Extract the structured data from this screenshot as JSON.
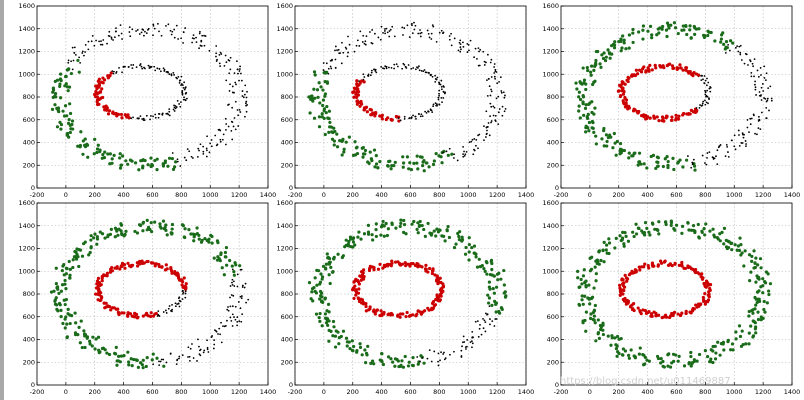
{
  "page": {
    "left_bar_color": "#a9a9a9"
  },
  "watermark": "https://blog.csdn.net/u011469887",
  "colors": {
    "black": "#000000",
    "red": "#cc0000",
    "green": "#1a6b1a",
    "grid": "#b5b5b5",
    "tick": "#000000"
  },
  "chart_data": [
    {
      "type": "scatter",
      "panel": "1",
      "xlim": [
        -200,
        1400
      ],
      "ylim": [
        0,
        1600
      ],
      "xticks": [
        -200,
        0,
        200,
        400,
        600,
        800,
        1000,
        1200,
        1400
      ],
      "yticks": [
        0,
        200,
        400,
        600,
        800,
        1000,
        1200,
        1400,
        1600
      ],
      "grid": true,
      "series": [
        {
          "color": "black"
        },
        {
          "color": "red"
        },
        {
          "color": "green"
        }
      ],
      "inner_ring": {
        "center": [
          520,
          840
        ],
        "rx": 300,
        "ry": 230,
        "red_ranges": [
          [
            135,
            120
          ]
        ],
        "green_ranges": []
      },
      "outer_ring": {
        "center": [
          580,
          800
        ],
        "rx": 620,
        "ry": 590,
        "red_ranges": [],
        "green_ranges": [
          [
            150,
            140
          ]
        ]
      }
    },
    {
      "type": "scatter",
      "panel": "2",
      "xlim": [
        -200,
        1400
      ],
      "ylim": [
        0,
        1600
      ],
      "xticks": [
        -200,
        0,
        200,
        400,
        600,
        800,
        1000,
        1200,
        1400
      ],
      "yticks": [
        0,
        200,
        400,
        600,
        800,
        1000,
        1200,
        1400,
        1600
      ],
      "grid": true,
      "series": [
        {
          "color": "black"
        },
        {
          "color": "red"
        },
        {
          "color": "green"
        }
      ],
      "inner_ring": {
        "center": [
          520,
          840
        ],
        "rx": 300,
        "ry": 230,
        "red_ranges": [
          [
            150,
            120
          ]
        ],
        "green_ranges": []
      },
      "outer_ring": {
        "center": [
          580,
          800
        ],
        "rx": 620,
        "ry": 590,
        "red_ranges": [],
        "green_ranges": [
          [
            160,
            138
          ]
        ]
      }
    },
    {
      "type": "scatter",
      "panel": "3",
      "xlim": [
        -200,
        1400
      ],
      "ylim": [
        0,
        1600
      ],
      "xticks": [
        -200,
        0,
        200,
        400,
        600,
        800,
        1000,
        1200,
        1400
      ],
      "yticks": [
        0,
        200,
        400,
        600,
        800,
        1000,
        1200,
        1400,
        1600
      ],
      "grid": true,
      "series": [
        {
          "color": "black"
        },
        {
          "color": "red"
        },
        {
          "color": "green"
        }
      ],
      "inner_ring": {
        "center": [
          520,
          840
        ],
        "rx": 300,
        "ry": 230,
        "red_ranges": [
          [
            40,
            280
          ]
        ],
        "green_ranges": []
      },
      "outer_ring": {
        "center": [
          580,
          800
        ],
        "rx": 620,
        "ry": 590,
        "red_ranges": [],
        "green_ranges": [
          [
            50,
            230
          ]
        ]
      }
    },
    {
      "type": "scatter",
      "panel": "4",
      "xlim": [
        -200,
        1400
      ],
      "ylim": [
        0,
        1600
      ],
      "xticks": [
        -200,
        0,
        200,
        400,
        600,
        800,
        1000,
        1200,
        1400
      ],
      "yticks": [
        0,
        200,
        400,
        600,
        800,
        1000,
        1200,
        1400,
        1600
      ],
      "grid": true,
      "series": [
        {
          "color": "black"
        },
        {
          "color": "red"
        },
        {
          "color": "green"
        }
      ],
      "inner_ring": {
        "center": [
          520,
          840
        ],
        "rx": 300,
        "ry": 230,
        "red_ranges": [
          [
            0,
            290
          ]
        ],
        "green_ranges": []
      },
      "outer_ring": {
        "center": [
          580,
          800
        ],
        "rx": 620,
        "ry": 590,
        "red_ranges": [],
        "green_ranges": [
          [
            20,
            255
          ]
        ]
      }
    },
    {
      "type": "scatter",
      "panel": "5",
      "xlim": [
        -200,
        1400
      ],
      "ylim": [
        0,
        1600
      ],
      "xticks": [
        -200,
        0,
        200,
        400,
        600,
        800,
        1000,
        1200,
        1400
      ],
      "yticks": [
        0,
        200,
        400,
        600,
        800,
        1000,
        1200,
        1400,
        1600
      ],
      "grid": true,
      "series": [
        {
          "color": "black"
        },
        {
          "color": "red"
        },
        {
          "color": "green"
        }
      ],
      "inner_ring": {
        "center": [
          520,
          840
        ],
        "rx": 300,
        "ry": 230,
        "red_ranges": [
          [
            0,
            360
          ]
        ],
        "green_ranges": []
      },
      "outer_ring": {
        "center": [
          580,
          800
        ],
        "rx": 620,
        "ry": 590,
        "red_ranges": [],
        "green_ranges": [
          [
            -15,
            295
          ]
        ]
      }
    },
    {
      "type": "scatter",
      "panel": "6",
      "xlim": [
        -200,
        1400
      ],
      "ylim": [
        0,
        1600
      ],
      "xticks": [
        -200,
        0,
        200,
        400,
        600,
        800,
        1000,
        1200,
        1400
      ],
      "yticks": [
        0,
        200,
        400,
        600,
        800,
        1000,
        1200,
        1400,
        1600
      ],
      "grid": true,
      "series": [
        {
          "color": "black"
        },
        {
          "color": "red"
        },
        {
          "color": "green"
        }
      ],
      "inner_ring": {
        "center": [
          520,
          840
        ],
        "rx": 300,
        "ry": 230,
        "red_ranges": [
          [
            0,
            360
          ]
        ],
        "green_ranges": []
      },
      "outer_ring": {
        "center": [
          580,
          800
        ],
        "rx": 620,
        "ry": 590,
        "red_ranges": [],
        "green_ranges": [
          [
            0,
            360
          ]
        ]
      }
    }
  ]
}
